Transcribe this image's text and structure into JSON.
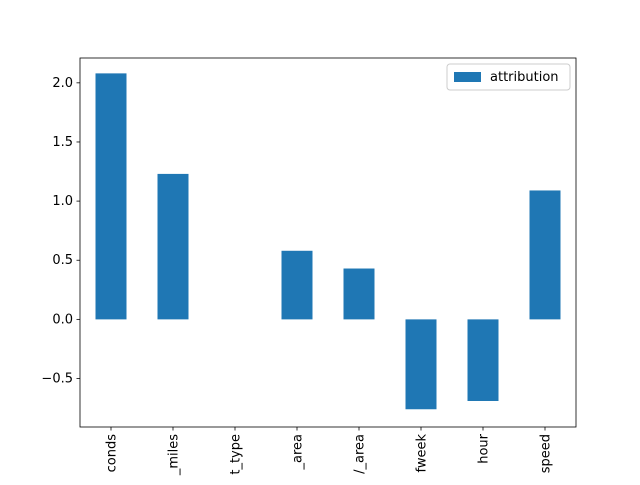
{
  "chart_data": {
    "type": "bar",
    "title": "",
    "xlabel": "",
    "ylabel": "",
    "categories": [
      "conds",
      "_miles",
      "t_type",
      "_area",
      "/_area",
      "fweek",
      "hour",
      "speed"
    ],
    "series": [
      {
        "name": "attribution",
        "color": "#1f77b4",
        "values": [
          2.08,
          1.23,
          0.0,
          0.58,
          0.43,
          -0.76,
          -0.69,
          1.09
        ]
      }
    ],
    "ylim": [
      -0.91,
      2.21
    ],
    "yticks": [
      -0.5,
      0.0,
      0.5,
      1.0,
      1.5,
      2.0
    ],
    "ytick_labels": [
      "−0.5",
      "0.0",
      "0.5",
      "1.0",
      "1.5",
      "2.0"
    ],
    "grid": false,
    "legend_position": "upper right",
    "tick_label_rotation": 90
  }
}
